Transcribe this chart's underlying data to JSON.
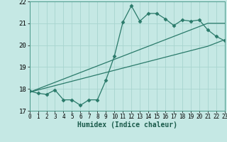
{
  "xlabel": "Humidex (Indice chaleur)",
  "x_values": [
    0,
    1,
    2,
    3,
    4,
    5,
    6,
    7,
    8,
    9,
    10,
    11,
    12,
    13,
    14,
    15,
    16,
    17,
    18,
    19,
    20,
    21,
    22,
    23
  ],
  "y_main": [
    17.9,
    17.8,
    17.75,
    17.95,
    17.5,
    17.5,
    17.25,
    17.5,
    17.5,
    18.4,
    19.5,
    21.05,
    21.8,
    21.1,
    21.45,
    21.45,
    21.2,
    20.9,
    21.15,
    21.1,
    21.15,
    20.7,
    20.4,
    20.2
  ],
  "y_trend1": [
    17.85,
    18.0,
    18.15,
    18.3,
    18.45,
    18.6,
    18.75,
    18.9,
    19.05,
    19.2,
    19.35,
    19.5,
    19.65,
    19.8,
    19.95,
    20.1,
    20.25,
    20.4,
    20.55,
    20.7,
    20.85,
    21.0,
    21.0,
    21.0
  ],
  "y_trend2": [
    17.85,
    17.95,
    18.05,
    18.15,
    18.25,
    18.35,
    18.45,
    18.55,
    18.65,
    18.75,
    18.85,
    18.95,
    19.05,
    19.15,
    19.25,
    19.35,
    19.45,
    19.55,
    19.65,
    19.75,
    19.85,
    19.95,
    20.1,
    20.25
  ],
  "line_color": "#2a7a6a",
  "bg_color": "#c5e8e4",
  "grid_color": "#a8d4cf",
  "ylim": [
    17.0,
    22.0
  ],
  "xlim": [
    0,
    23
  ],
  "yticks": [
    17,
    18,
    19,
    20,
    21,
    22
  ],
  "xticks": [
    0,
    1,
    2,
    3,
    4,
    5,
    6,
    7,
    8,
    9,
    10,
    11,
    12,
    13,
    14,
    15,
    16,
    17,
    18,
    19,
    20,
    21,
    22,
    23
  ]
}
